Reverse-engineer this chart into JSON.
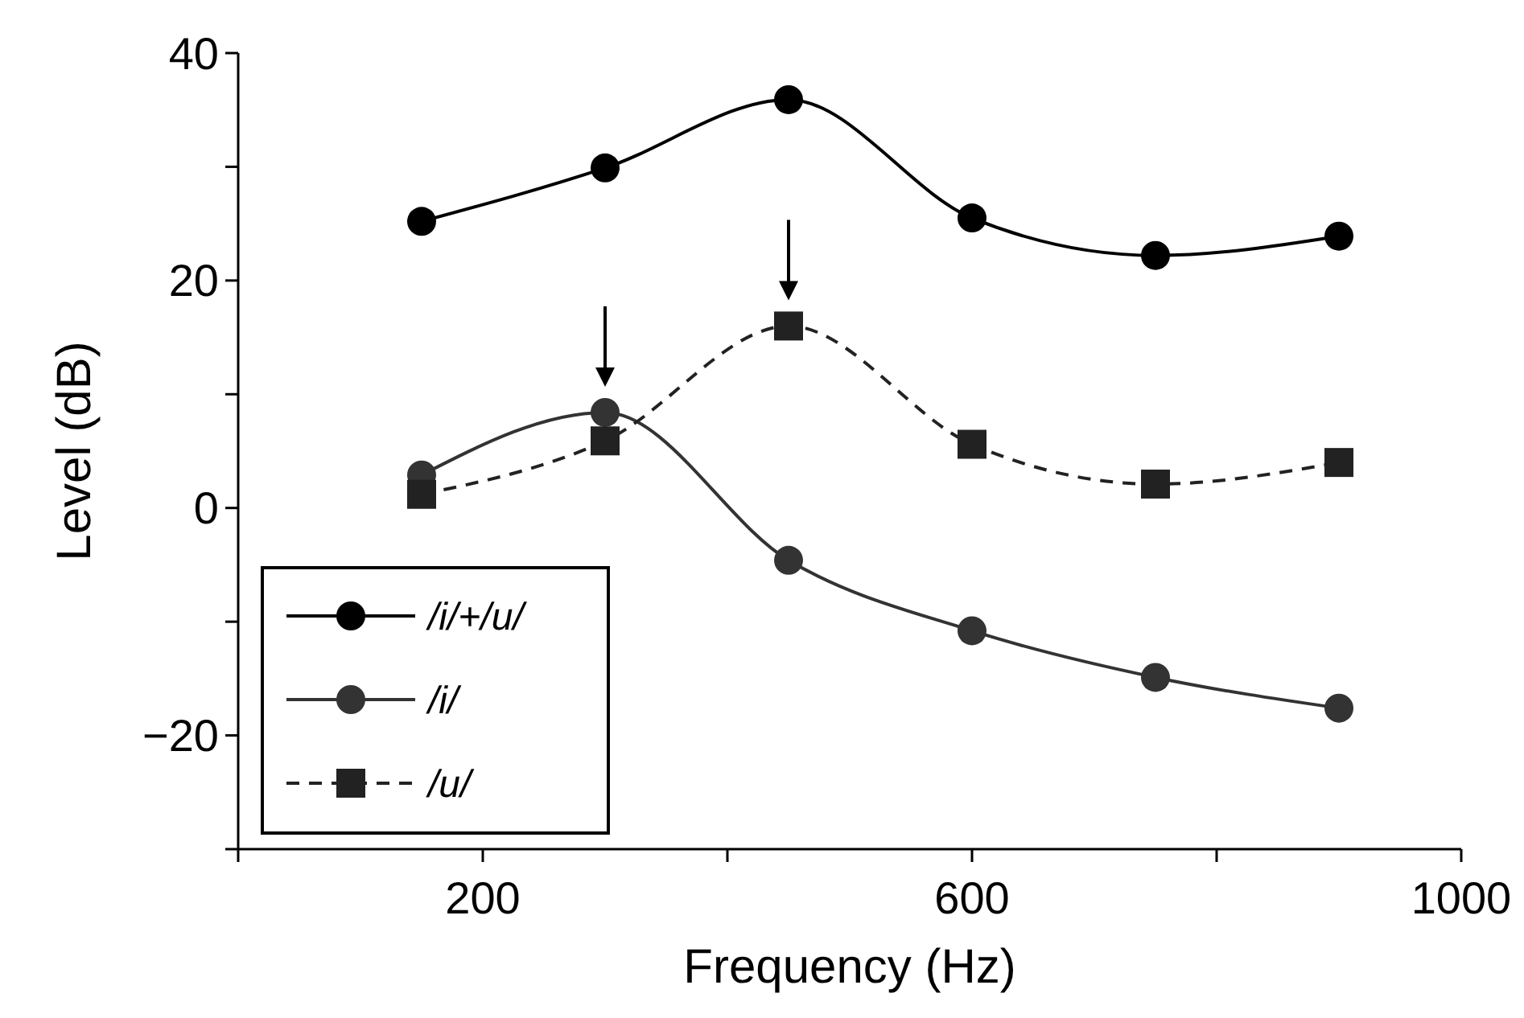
{
  "chart_data": {
    "type": "line",
    "xlabel": "Frequency (Hz)",
    "ylabel": "Level (dB)",
    "xlim": [
      0,
      1000
    ],
    "xticks": [
      {
        "value": 0,
        "label": null
      },
      200,
      {
        "value": 400,
        "label": null
      },
      600,
      {
        "value": 800,
        "label": null
      },
      1000
    ],
    "ylim": [
      -30,
      40
    ],
    "yticks": [
      {
        "value": -30,
        "label": null
      },
      -20,
      {
        "value": -10,
        "label": null
      },
      0,
      {
        "value": 10,
        "label": null
      },
      20,
      {
        "value": 30,
        "label": null
      },
      40
    ],
    "x": [
      150,
      300,
      450,
      600,
      750,
      900
    ],
    "legend": "bottom left",
    "grid": false,
    "series": [
      {
        "name": "/i/+/u/",
        "color": "#000000",
        "marker": "circle",
        "line_style": "solid",
        "values": [
          25.2,
          29.9,
          35.9,
          25.5,
          22.2,
          23.9
        ]
      },
      {
        "name": "/i/",
        "color": "#333333",
        "marker": "circle",
        "line_style": "solid",
        "values": [
          2.9,
          8.4,
          -4.6,
          -10.8,
          -14.9,
          -17.6
        ]
      },
      {
        "name": "/u/",
        "color": "#222222",
        "marker": "square",
        "line_style": "dashed",
        "values": [
          1.2,
          5.9,
          16.0,
          5.6,
          2.1,
          4.0
        ]
      }
    ]
  }
}
